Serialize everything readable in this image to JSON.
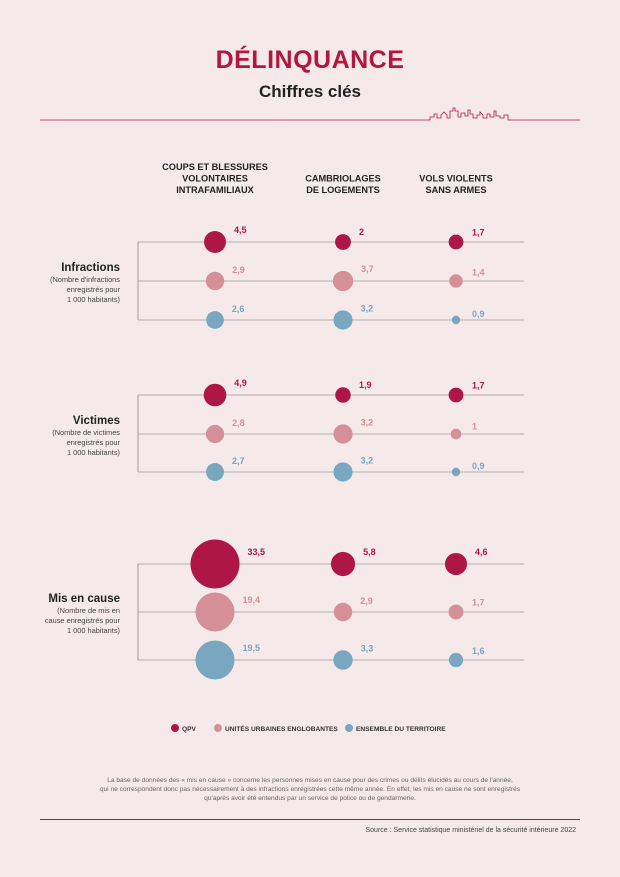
{
  "header": {
    "title": "DÉLINQUANCE",
    "subtitle": "Chiffres clés"
  },
  "colors": {
    "qpv": "#ae1745",
    "unites": "#d58f96",
    "ensemble": "#79a7bf",
    "accent": "#b3163f",
    "background": "#f6e9ea"
  },
  "chart_data": {
    "type": "bubble",
    "columns": [
      [
        "COUPS ET BLESSURES",
        "VOLONTAIRES",
        "INTRAFAMILIAUX"
      ],
      [
        "CAMBRIOLAGES",
        "DE LOGEMENTS"
      ],
      [
        "VOLS VIOLENTS",
        "SANS ARMES"
      ]
    ],
    "series": [
      {
        "key": "qpv",
        "name": "QPV"
      },
      {
        "key": "unites",
        "name": "UNITÉS URBAINES ENGLOBANTES"
      },
      {
        "key": "ensemble",
        "name": "ENSEMBLE DU TERRITOIRE"
      }
    ],
    "groups": [
      {
        "title": "Infractions",
        "subtitle": [
          "(Nombre d'infractions",
          "enregistrés pour",
          "1 000 habitants)"
        ],
        "values": [
          [
            4.5,
            2,
            1.7
          ],
          [
            2.9,
            3.7,
            1.4
          ],
          [
            2.6,
            3.2,
            0.9
          ]
        ],
        "labels": [
          [
            "4,5",
            "2",
            "1,7"
          ],
          [
            "2,9",
            "3,7",
            "1,4"
          ],
          [
            "2,6",
            "3,2",
            "0,9"
          ]
        ]
      },
      {
        "title": "Victimes",
        "subtitle": [
          "(Nombre de victimes",
          "enregistrés pour",
          "1 000 habitants)"
        ],
        "values": [
          [
            4.9,
            1.9,
            1.7
          ],
          [
            2.8,
            3.2,
            1
          ],
          [
            2.7,
            3.2,
            0.9
          ]
        ],
        "labels": [
          [
            "4,9",
            "1,9",
            "1,7"
          ],
          [
            "2,8",
            "3,2",
            "1"
          ],
          [
            "2,7",
            "3,2",
            "0,9"
          ]
        ]
      },
      {
        "title": "Mis en cause",
        "subtitle": [
          "(Nombre de mis en",
          "cause enregistrés pour",
          "1 000 habitants)"
        ],
        "values": [
          [
            33.5,
            5.8,
            4.6
          ],
          [
            19.4,
            2.9,
            1.7
          ],
          [
            19.5,
            3.3,
            1.6
          ]
        ],
        "labels": [
          [
            "33,5",
            "5,8",
            "4,6"
          ],
          [
            "19,4",
            "2,9",
            "1,7"
          ],
          [
            "19,5",
            "3,3",
            "1,6"
          ]
        ]
      }
    ]
  },
  "footer": {
    "note_line1": "La base de données des « mis en cause » concerne les personnes mises en cause pour des crimes ou délits élucidés au cours de l'année,",
    "note_line2": "qui ne correspondent donc pas nécessairement à des infractions enregistrées cette même année. En effet, les mis en cause ne sont enregistrés",
    "note_line3": "qu'après avoir été entendus par un service de police ou de gendarmerie.",
    "source": "Source : Service statistique ministériel de la sécurité intérieure 2022"
  }
}
